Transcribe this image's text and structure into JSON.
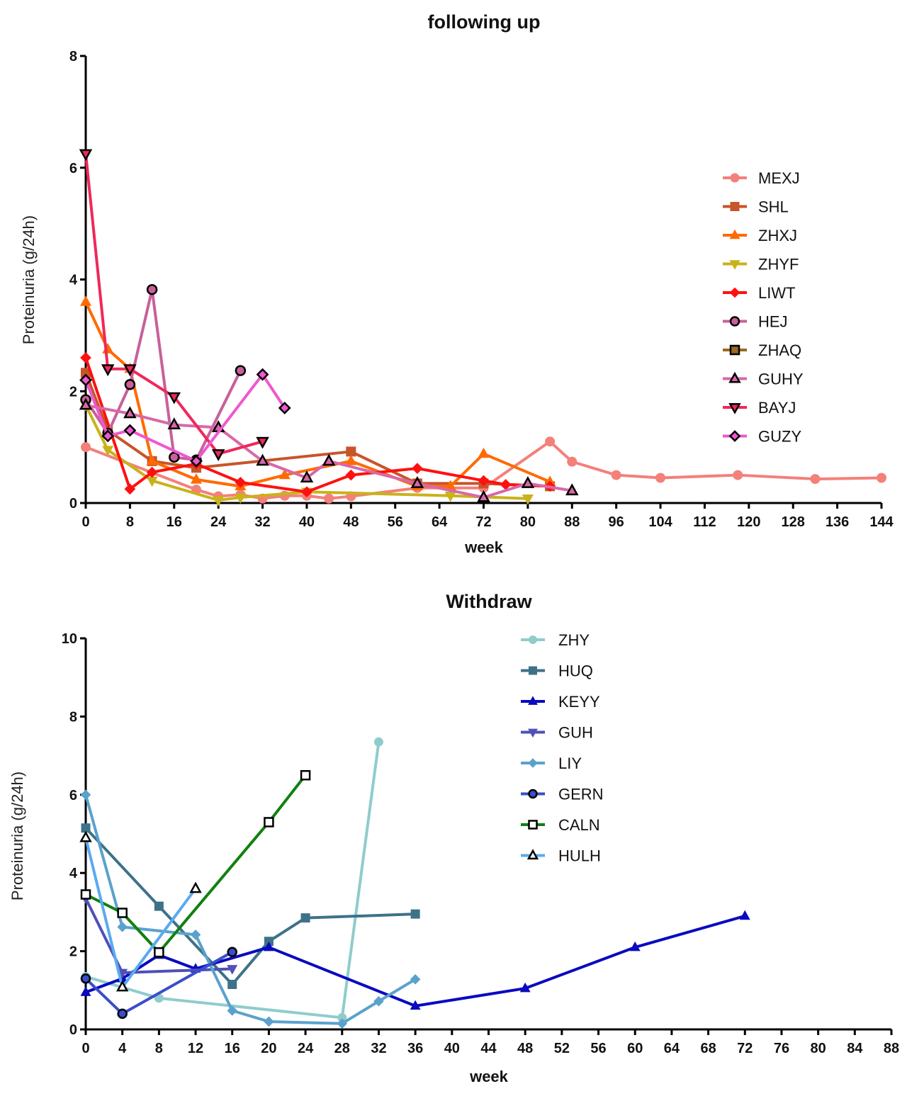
{
  "chart_data": [
    {
      "type": "line",
      "title": "following up",
      "xlabel": "week",
      "ylabel": "Proteinuria (g/24h)",
      "xlim": [
        0,
        144
      ],
      "ylim": [
        0,
        8
      ],
      "xticks": [
        0,
        8,
        16,
        24,
        32,
        40,
        48,
        56,
        64,
        72,
        80,
        88,
        96,
        104,
        112,
        120,
        128,
        136,
        144
      ],
      "yticks": [
        0,
        2,
        4,
        6,
        8
      ],
      "grid": false,
      "legend_position": "right",
      "series": [
        {
          "name": "MEXJ",
          "color": "#f4807a",
          "marker": "circle",
          "outlined": false,
          "x": [
            0,
            20,
            24,
            28,
            32,
            36,
            40,
            44,
            48,
            60,
            72,
            84,
            88,
            96,
            104,
            118,
            132,
            144
          ],
          "y": [
            1.0,
            0.24,
            0.12,
            0.15,
            0.08,
            0.13,
            0.13,
            0.08,
            0.12,
            0.27,
            0.27,
            1.1,
            0.74,
            0.5,
            0.45,
            0.5,
            0.43,
            0.45
          ]
        },
        {
          "name": "SHL",
          "color": "#c8542a",
          "marker": "square",
          "outlined": false,
          "x": [
            0,
            4,
            12,
            20,
            48,
            60,
            72,
            84
          ],
          "y": [
            2.33,
            1.3,
            0.75,
            0.63,
            0.92,
            0.35,
            0.35,
            0.3
          ]
        },
        {
          "name": "ZHXJ",
          "color": "#ff6a00",
          "marker": "triangle-up",
          "outlined": false,
          "x": [
            0,
            4,
            8,
            12,
            20,
            28,
            36,
            48,
            60,
            66,
            72,
            84
          ],
          "y": [
            3.6,
            2.75,
            2.4,
            0.75,
            0.42,
            0.3,
            0.5,
            0.75,
            0.3,
            0.3,
            0.88,
            0.38
          ]
        },
        {
          "name": "ZHYF",
          "color": "#c9b21a",
          "marker": "triangle-down",
          "outlined": false,
          "x": [
            0,
            4,
            12,
            24,
            28,
            40,
            66,
            80
          ],
          "y": [
            1.75,
            0.95,
            0.4,
            0.05,
            0.1,
            0.2,
            0.13,
            0.08
          ]
        },
        {
          "name": "LIWT",
          "color": "#ff1010",
          "marker": "diamond",
          "outlined": false,
          "x": [
            0,
            8,
            12,
            20,
            28,
            40,
            48,
            60,
            72,
            76,
            84
          ],
          "y": [
            2.6,
            0.25,
            0.55,
            0.7,
            0.37,
            0.2,
            0.5,
            0.62,
            0.4,
            0.33,
            0.3
          ]
        },
        {
          "name": "HEJ",
          "color": "#c8609a",
          "marker": "circle",
          "outlined": true,
          "x": [
            0,
            4,
            8,
            12,
            16,
            20,
            28
          ],
          "y": [
            1.85,
            1.25,
            2.12,
            3.82,
            0.82,
            0.77,
            2.37
          ]
        },
        {
          "name": "ZHAQ",
          "color": "#9a6a20",
          "marker": "square",
          "outlined": true,
          "x": [],
          "y": []
        },
        {
          "name": "GUHY",
          "color": "#d868a8",
          "marker": "triangle-up",
          "outlined": true,
          "x": [
            0,
            8,
            16,
            24,
            32,
            40,
            44,
            60,
            72,
            80,
            88
          ],
          "y": [
            1.75,
            1.6,
            1.4,
            1.35,
            0.75,
            0.45,
            0.75,
            0.35,
            0.1,
            0.35,
            0.22
          ]
        },
        {
          "name": "BAYJ",
          "color": "#f0285a",
          "marker": "triangle-down",
          "outlined": true,
          "x": [
            0,
            4,
            8,
            16,
            24,
            32
          ],
          "y": [
            6.25,
            2.4,
            2.4,
            1.9,
            0.88,
            1.1
          ]
        },
        {
          "name": "GUZY",
          "color": "#ee58d0",
          "marker": "diamond",
          "outlined": true,
          "x": [
            0,
            4,
            8,
            20,
            32,
            36
          ],
          "y": [
            2.2,
            1.2,
            1.3,
            0.75,
            2.3,
            1.7
          ]
        }
      ]
    },
    {
      "type": "line",
      "title": "Withdraw",
      "xlabel": "week",
      "ylabel": "Proteinuria (g/24h)",
      "xlim": [
        0,
        88
      ],
      "ylim": [
        0,
        10
      ],
      "xticks": [
        0,
        4,
        8,
        12,
        16,
        20,
        24,
        28,
        32,
        36,
        40,
        44,
        48,
        52,
        56,
        60,
        64,
        68,
        72,
        76,
        80,
        84,
        88
      ],
      "yticks": [
        0,
        2,
        4,
        6,
        8,
        10
      ],
      "grid": false,
      "legend_position": "top-center",
      "series": [
        {
          "name": "ZHY",
          "color": "#90cccc",
          "marker": "circle",
          "outlined": false,
          "x": [
            0,
            8,
            28,
            32
          ],
          "y": [
            1.35,
            0.8,
            0.3,
            7.35
          ]
        },
        {
          "name": "HUQ",
          "color": "#3e7288",
          "marker": "square",
          "outlined": false,
          "x": [
            0,
            8,
            16,
            20,
            24,
            36
          ],
          "y": [
            5.15,
            3.15,
            1.15,
            2.25,
            2.85,
            2.95
          ]
        },
        {
          "name": "KEYY",
          "color": "#0a0ac0",
          "marker": "triangle-up",
          "outlined": false,
          "x": [
            0,
            4,
            8,
            12,
            20,
            36,
            48,
            60,
            72
          ],
          "y": [
            0.95,
            1.3,
            1.9,
            1.55,
            2.1,
            0.6,
            1.05,
            2.1,
            2.9
          ]
        },
        {
          "name": "GUH",
          "color": "#5050b8",
          "marker": "triangle-down",
          "outlined": false,
          "x": [
            0,
            4,
            16
          ],
          "y": [
            3.35,
            1.45,
            1.55
          ]
        },
        {
          "name": "LIY",
          "color": "#5aa2cc",
          "marker": "diamond",
          "outlined": false,
          "x": [
            0,
            4,
            12,
            16,
            20,
            28,
            32,
            36
          ],
          "y": [
            6.0,
            2.62,
            2.42,
            0.48,
            0.2,
            0.15,
            0.72,
            1.28
          ]
        },
        {
          "name": "GERN",
          "color": "#3a4ecc",
          "marker": "circle",
          "outlined": true,
          "x": [
            0,
            4,
            16
          ],
          "y": [
            1.3,
            0.4,
            1.98
          ]
        },
        {
          "name": "CALN",
          "color": "#108010",
          "marker": "square",
          "outlined": true,
          "hollow": true,
          "x": [
            0,
            4,
            8,
            20,
            24
          ],
          "y": [
            3.45,
            2.98,
            1.97,
            5.3,
            6.5
          ]
        },
        {
          "name": "HULH",
          "color": "#5aaaf0",
          "marker": "triangle-up",
          "outlined": true,
          "hollow": true,
          "x": [
            0,
            4,
            12
          ],
          "y": [
            4.9,
            1.08,
            3.6
          ]
        }
      ]
    }
  ]
}
